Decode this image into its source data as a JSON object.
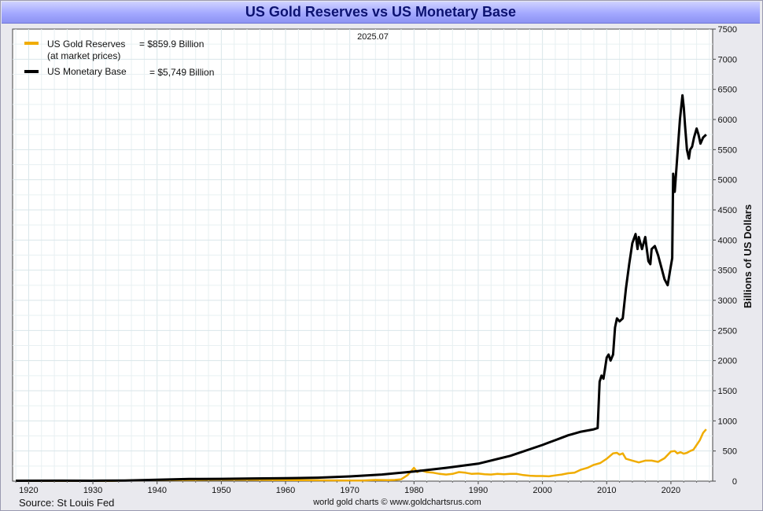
{
  "chart_data": {
    "type": "line",
    "title": "US Gold Reserves vs US Monetary Base",
    "date_stamp": "2025.07",
    "ylabel": "Billions of US Dollars",
    "xlim": [
      1917.5,
      2026.5
    ],
    "ylim": [
      0,
      7500
    ],
    "x_ticks": [
      1920,
      1930,
      1940,
      1950,
      1960,
      1970,
      1980,
      1990,
      2000,
      2010,
      2020
    ],
    "x_tick_labels": [
      "1920",
      "1930",
      "1940",
      "1950",
      "1960",
      "1970",
      "1980",
      "1990",
      "2000",
      "2010",
      "2020"
    ],
    "y_ticks": [
      0,
      500,
      1000,
      1500,
      2000,
      2500,
      3000,
      3500,
      4000,
      4500,
      5000,
      5500,
      6000,
      6500,
      7000,
      7500
    ],
    "y_tick_labels": [
      "0",
      "500",
      "1000",
      "1500",
      "2000",
      "2500",
      "3000",
      "3500",
      "4000",
      "4500",
      "5000",
      "5500",
      "6000",
      "6500",
      "7000",
      "7500"
    ],
    "grid": true,
    "legend_position": "top-left",
    "source": "Source: St Louis Fed",
    "credit": "world gold charts © www.goldchartsrus.com",
    "series": [
      {
        "name": "US Gold Reserves",
        "name_line2": "(at market prices)",
        "value_label": "= $859.9 Billion",
        "color": "#f0ac00",
        "points": [
          [
            1918,
            3
          ],
          [
            1925,
            4
          ],
          [
            1933,
            4
          ],
          [
            1934,
            8
          ],
          [
            1940,
            20
          ],
          [
            1945,
            20
          ],
          [
            1949,
            25
          ],
          [
            1955,
            22
          ],
          [
            1960,
            18
          ],
          [
            1965,
            14
          ],
          [
            1970,
            11
          ],
          [
            1971,
            10
          ],
          [
            1972,
            10
          ],
          [
            1973,
            14
          ],
          [
            1974,
            20
          ],
          [
            1975,
            18
          ],
          [
            1976,
            17
          ],
          [
            1977,
            20
          ],
          [
            1978,
            30
          ],
          [
            1979,
            100
          ],
          [
            1980,
            220
          ],
          [
            1980.5,
            150
          ],
          [
            1981,
            180
          ],
          [
            1982,
            150
          ],
          [
            1983,
            140
          ],
          [
            1984,
            120
          ],
          [
            1985,
            110
          ],
          [
            1986,
            120
          ],
          [
            1987,
            150
          ],
          [
            1988,
            140
          ],
          [
            1989,
            120
          ],
          [
            1990,
            125
          ],
          [
            1991,
            115
          ],
          [
            1992,
            110
          ],
          [
            1993,
            120
          ],
          [
            1994,
            115
          ],
          [
            1995,
            120
          ],
          [
            1996,
            120
          ],
          [
            1997,
            100
          ],
          [
            1998,
            90
          ],
          [
            1999,
            85
          ],
          [
            2000,
            85
          ],
          [
            2001,
            80
          ],
          [
            2002,
            95
          ],
          [
            2003,
            110
          ],
          [
            2004,
            130
          ],
          [
            2005,
            140
          ],
          [
            2006,
            190
          ],
          [
            2007,
            220
          ],
          [
            2008,
            270
          ],
          [
            2009,
            300
          ],
          [
            2010,
            370
          ],
          [
            2011,
            460
          ],
          [
            2011.6,
            470
          ],
          [
            2012,
            440
          ],
          [
            2012.5,
            460
          ],
          [
            2013,
            370
          ],
          [
            2014,
            340
          ],
          [
            2015,
            310
          ],
          [
            2016,
            340
          ],
          [
            2017,
            340
          ],
          [
            2018,
            320
          ],
          [
            2019,
            380
          ],
          [
            2020,
            490
          ],
          [
            2020.6,
            500
          ],
          [
            2021,
            460
          ],
          [
            2021.5,
            480
          ],
          [
            2022,
            455
          ],
          [
            2022.5,
            470
          ],
          [
            2023,
            500
          ],
          [
            2023.5,
            520
          ],
          [
            2024,
            600
          ],
          [
            2024.5,
            680
          ],
          [
            2025,
            800
          ],
          [
            2025.5,
            860
          ]
        ]
      },
      {
        "name": "US Monetary Base",
        "value_label": "= $5,749 Billion",
        "color": "#000000",
        "points": [
          [
            1918,
            7
          ],
          [
            1925,
            8
          ],
          [
            1930,
            7
          ],
          [
            1935,
            10
          ],
          [
            1940,
            22
          ],
          [
            1945,
            35
          ],
          [
            1950,
            38
          ],
          [
            1955,
            44
          ],
          [
            1960,
            48
          ],
          [
            1965,
            58
          ],
          [
            1970,
            78
          ],
          [
            1975,
            110
          ],
          [
            1980,
            160
          ],
          [
            1985,
            220
          ],
          [
            1990,
            290
          ],
          [
            1995,
            420
          ],
          [
            2000,
            600
          ],
          [
            2001,
            640
          ],
          [
            2002,
            680
          ],
          [
            2003,
            720
          ],
          [
            2004,
            760
          ],
          [
            2005,
            790
          ],
          [
            2006,
            820
          ],
          [
            2007,
            840
          ],
          [
            2008,
            860
          ],
          [
            2008.6,
            880
          ],
          [
            2008.9,
            1650
          ],
          [
            2009.2,
            1750
          ],
          [
            2009.5,
            1700
          ],
          [
            2010,
            2050
          ],
          [
            2010.3,
            2100
          ],
          [
            2010.6,
            2000
          ],
          [
            2011,
            2100
          ],
          [
            2011.3,
            2550
          ],
          [
            2011.6,
            2700
          ],
          [
            2012,
            2650
          ],
          [
            2012.5,
            2700
          ],
          [
            2013,
            3200
          ],
          [
            2013.5,
            3600
          ],
          [
            2014,
            3950
          ],
          [
            2014.5,
            4100
          ],
          [
            2014.8,
            3850
          ],
          [
            2015,
            4050
          ],
          [
            2015.5,
            3850
          ],
          [
            2016,
            4050
          ],
          [
            2016.5,
            3650
          ],
          [
            2016.8,
            3600
          ],
          [
            2017,
            3850
          ],
          [
            2017.5,
            3900
          ],
          [
            2018,
            3750
          ],
          [
            2018.5,
            3550
          ],
          [
            2019,
            3350
          ],
          [
            2019.5,
            3250
          ],
          [
            2019.8,
            3450
          ],
          [
            2020.2,
            3700
          ],
          [
            2020.35,
            5100
          ],
          [
            2020.6,
            4800
          ],
          [
            2021,
            5400
          ],
          [
            2021.4,
            6000
          ],
          [
            2021.8,
            6400
          ],
          [
            2022,
            6200
          ],
          [
            2022.2,
            5900
          ],
          [
            2022.5,
            5500
          ],
          [
            2022.8,
            5350
          ],
          [
            2023,
            5500
          ],
          [
            2023.3,
            5550
          ],
          [
            2023.6,
            5700
          ],
          [
            2024,
            5850
          ],
          [
            2024.3,
            5750
          ],
          [
            2024.6,
            5600
          ],
          [
            2025,
            5700
          ],
          [
            2025.5,
            5750
          ]
        ]
      }
    ]
  }
}
